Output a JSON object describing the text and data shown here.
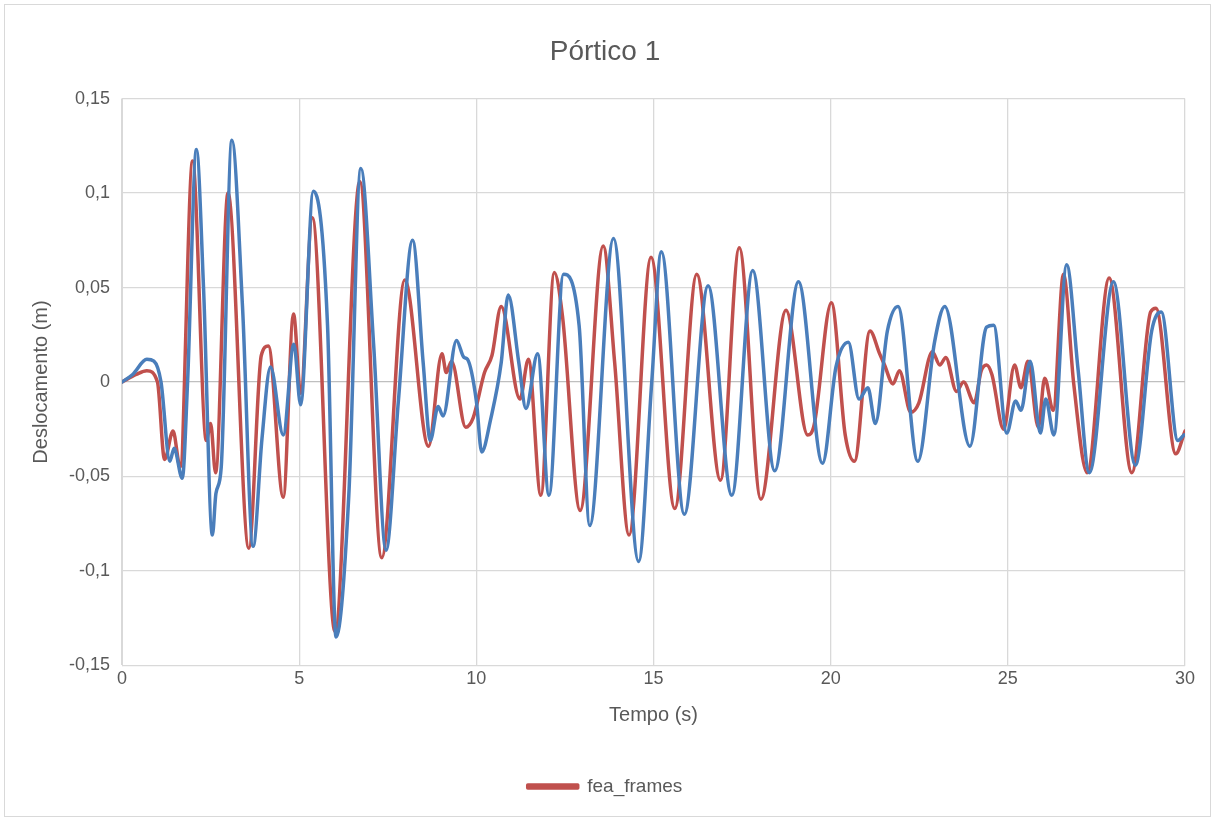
{
  "chart_data": {
    "type": "line",
    "title": "Pórtico 1",
    "xlabel": "Tempo (s)",
    "ylabel": "Deslocamento (m)",
    "xlim": [
      0,
      30
    ],
    "xticks": [
      0,
      5,
      10,
      15,
      20,
      25,
      30
    ],
    "ylim": [
      -0.15,
      0.15
    ],
    "yticks": [
      {
        "value": -0.15,
        "label": "-0,15"
      },
      {
        "value": -0.1,
        "label": "-0,1"
      },
      {
        "value": -0.05,
        "label": "-0,05"
      },
      {
        "value": 0,
        "label": "0"
      },
      {
        "value": 0.05,
        "label": "0,05"
      },
      {
        "value": 0.1,
        "label": "0,1"
      },
      {
        "value": 0.15,
        "label": "0,15"
      }
    ],
    "grid": true,
    "legend": "bottom",
    "marker": "none",
    "line_style": "solid",
    "series": [
      {
        "color": "#4a7ebb",
        "x": [
          0,
          0.3,
          0.7,
          0.9,
          1.1,
          1.35,
          1.47,
          1.7,
          1.85,
          2.1,
          2.3,
          2.55,
          2.65,
          2.8,
          3.1,
          3.4,
          3.7,
          3.95,
          4.19,
          4.55,
          4.85,
          5.04,
          5.4,
          5.8,
          6.04,
          6.4,
          6.74,
          7.1,
          7.45,
          7.8,
          8.2,
          8.5,
          8.7,
          8.92,
          9.06,
          9.44,
          9.65,
          9.75,
          10.0,
          10.15,
          10.4,
          10.7,
          10.9,
          11.2,
          11.4,
          11.73,
          12.05,
          12.46,
          12.9,
          13.2,
          13.87,
          14.58,
          14.95,
          15.22,
          15.87,
          16.54,
          17.21,
          17.8,
          18.42,
          19.09,
          19.77,
          20.15,
          20.5,
          20.8,
          21.05,
          21.26,
          21.6,
          21.9,
          22.46,
          22.93,
          23.22,
          23.93,
          24.4,
          24.6,
          24.97,
          25.22,
          25.37,
          25.63,
          25.92,
          26.07,
          26.3,
          26.66,
          26.98,
          27.3,
          27.98,
          28.6,
          29.06,
          29.33,
          29.8,
          29.97
        ],
        "values": [
          0,
          0.004,
          0.012,
          0.011,
          0,
          -0.042,
          -0.035,
          -0.051,
          0,
          0.123,
          0.05,
          -0.081,
          -0.059,
          -0.045,
          0.128,
          0.04,
          -0.087,
          -0.03,
          0.008,
          -0.028,
          0.02,
          -0.012,
          0.101,
          0.03,
          -0.135,
          -0.06,
          0.113,
          0.02,
          -0.089,
          -0.01,
          0.075,
          0.01,
          -0.031,
          -0.013,
          -0.018,
          0.022,
          0.013,
          0.012,
          -0.01,
          -0.037,
          -0.02,
          0.01,
          0.046,
          0.01,
          -0.014,
          0.015,
          -0.06,
          0.057,
          0.03,
          -0.076,
          0.076,
          -0.095,
          0,
          0.069,
          -0.07,
          0.051,
          -0.06,
          0.059,
          -0.047,
          0.053,
          -0.043,
          0.008,
          0.021,
          -0.009,
          -0.003,
          -0.022,
          0.027,
          0.04,
          -0.042,
          0.021,
          0.04,
          -0.034,
          0.029,
          0.03,
          -0.027,
          -0.01,
          -0.015,
          0.011,
          -0.027,
          -0.009,
          -0.028,
          0.062,
          0.007,
          -0.048,
          0.053,
          -0.044,
          0.027,
          0.037,
          -0.031,
          -0.028
        ]
      },
      {
        "name": "fea_frames",
        "color": "#c0504d",
        "x": [
          0,
          0.4,
          0.7,
          1.0,
          1.2,
          1.44,
          1.64,
          1.99,
          2.38,
          2.5,
          2.64,
          2.99,
          3.58,
          3.93,
          4.13,
          4.55,
          4.84,
          5.04,
          5.37,
          6.01,
          6.71,
          7.33,
          7.98,
          8.65,
          9.03,
          9.15,
          9.3,
          9.7,
          9.91,
          10.23,
          10.44,
          10.7,
          11.23,
          11.47,
          11.82,
          12.2,
          12.43,
          12.93,
          13.58,
          13.9,
          14.31,
          14.93,
          15.6,
          16.22,
          16.89,
          17.42,
          18.03,
          18.74,
          19.35,
          19.53,
          20.02,
          20.41,
          20.67,
          21.11,
          21.38,
          21.52,
          21.76,
          21.94,
          22.26,
          22.49,
          22.87,
          23.08,
          23.25,
          23.55,
          23.75,
          24.05,
          24.25,
          24.4,
          24.55,
          24.88,
          25.19,
          25.37,
          25.57,
          25.86,
          26.04,
          26.28,
          26.57,
          26.86,
          27.24,
          27.86,
          28.5,
          29.03,
          29.18,
          29.74,
          30
        ],
        "values": [
          0,
          0.004,
          0.006,
          0,
          -0.041,
          -0.026,
          -0.045,
          0.117,
          -0.031,
          -0.022,
          -0.048,
          0.1,
          -0.088,
          0.014,
          0.019,
          -0.061,
          0.036,
          -0.006,
          0.087,
          -0.132,
          0.106,
          -0.093,
          0.054,
          -0.034,
          0.015,
          0.005,
          0.011,
          -0.024,
          -0.019,
          0.005,
          0.014,
          0.04,
          -0.009,
          0.012,
          -0.06,
          0.058,
          0.035,
          -0.068,
          0.072,
          0.011,
          -0.081,
          0.066,
          -0.067,
          0.057,
          -0.052,
          0.071,
          -0.062,
          0.038,
          -0.028,
          -0.023,
          0.042,
          -0.028,
          -0.042,
          0.027,
          0.015,
          0.009,
          -0.001,
          0.006,
          -0.016,
          -0.011,
          0.016,
          0.009,
          0.013,
          -0.005,
          0,
          -0.011,
          0.006,
          0.009,
          0.004,
          -0.025,
          0.009,
          -0.003,
          0.011,
          -0.024,
          0.002,
          -0.015,
          0.057,
          -0.001,
          -0.048,
          0.055,
          -0.048,
          0.037,
          0.039,
          -0.038,
          -0.026
        ]
      }
    ]
  }
}
